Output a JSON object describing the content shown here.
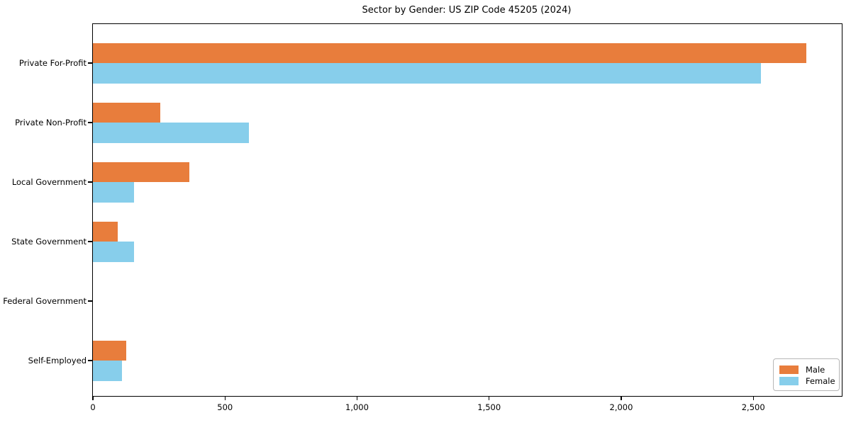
{
  "chart_data": {
    "type": "bar",
    "orientation": "horizontal",
    "title": "Sector by Gender: US ZIP Code 45205 (2024)",
    "categories": [
      "Private For-Profit",
      "Private Non-Profit",
      "Local Government",
      "State Government",
      "Federal Government",
      "Self-Employed"
    ],
    "series": [
      {
        "name": "Male",
        "color": "#e87d3c",
        "values": [
          2700,
          255,
          365,
          95,
          0,
          125
        ]
      },
      {
        "name": "Female",
        "color": "#87ceeb",
        "values": [
          2530,
          590,
          155,
          155,
          0,
          110
        ]
      }
    ],
    "xlabel": "",
    "ylabel": "",
    "xlim": [
      0,
      2835
    ],
    "x_ticks": [
      0,
      500,
      1000,
      1500,
      2000,
      2500
    ],
    "x_tick_labels": [
      "0",
      "500",
      "1,000",
      "1,500",
      "2,000",
      "2,500"
    ],
    "grid": false,
    "legend_position": "lower right",
    "background_color": "#ffffff",
    "spine_color": "#000000"
  }
}
